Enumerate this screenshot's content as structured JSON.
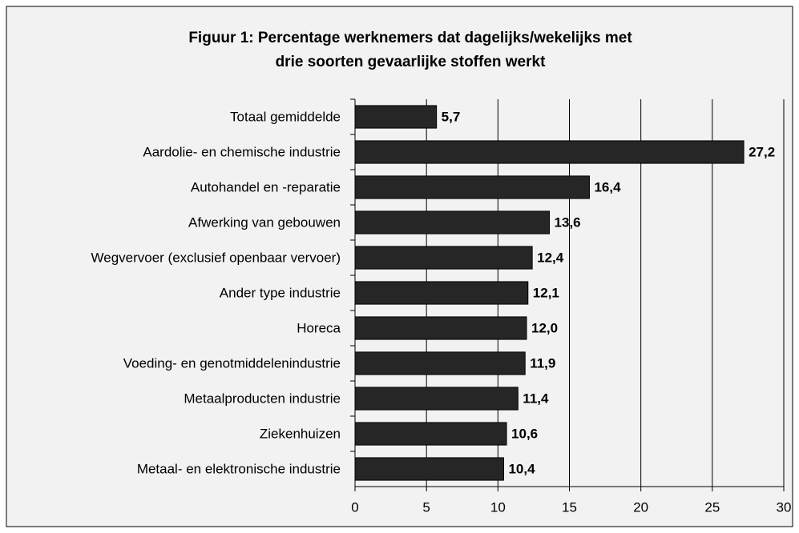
{
  "chart_data": {
    "type": "bar",
    "orientation": "horizontal",
    "title": [
      "Figuur 1: Percentage werknemers dat dagelijks/wekelijks met",
      "drie  soorten gevaarlijke stoffen werkt"
    ],
    "categories": [
      "Totaal gemiddelde",
      "Aardolie- en chemische industrie",
      "Autohandel en -reparatie",
      "Afwerking van gebouwen",
      "Wegvervoer (exclusief openbaar vervoer)",
      "Ander type industrie",
      "Horeca",
      "Voeding- en genotmiddelenindustrie",
      "Metaalproducten industrie",
      "Ziekenhuizen",
      "Metaal- en elektronische industrie"
    ],
    "values": [
      5.7,
      27.2,
      16.4,
      13.6,
      12.4,
      12.1,
      12.0,
      11.9,
      11.4,
      10.6,
      10.4
    ],
    "value_labels": [
      "5,7",
      "27,2",
      "16,4",
      "13,6",
      "12,4",
      "12,1",
      "12,0",
      "11,9",
      "11,4",
      "10,6",
      "10,4"
    ],
    "color": "#262626",
    "xlim": [
      0,
      30
    ],
    "xticks": [
      0,
      5,
      10,
      15,
      20,
      25,
      30
    ],
    "grid": true
  }
}
